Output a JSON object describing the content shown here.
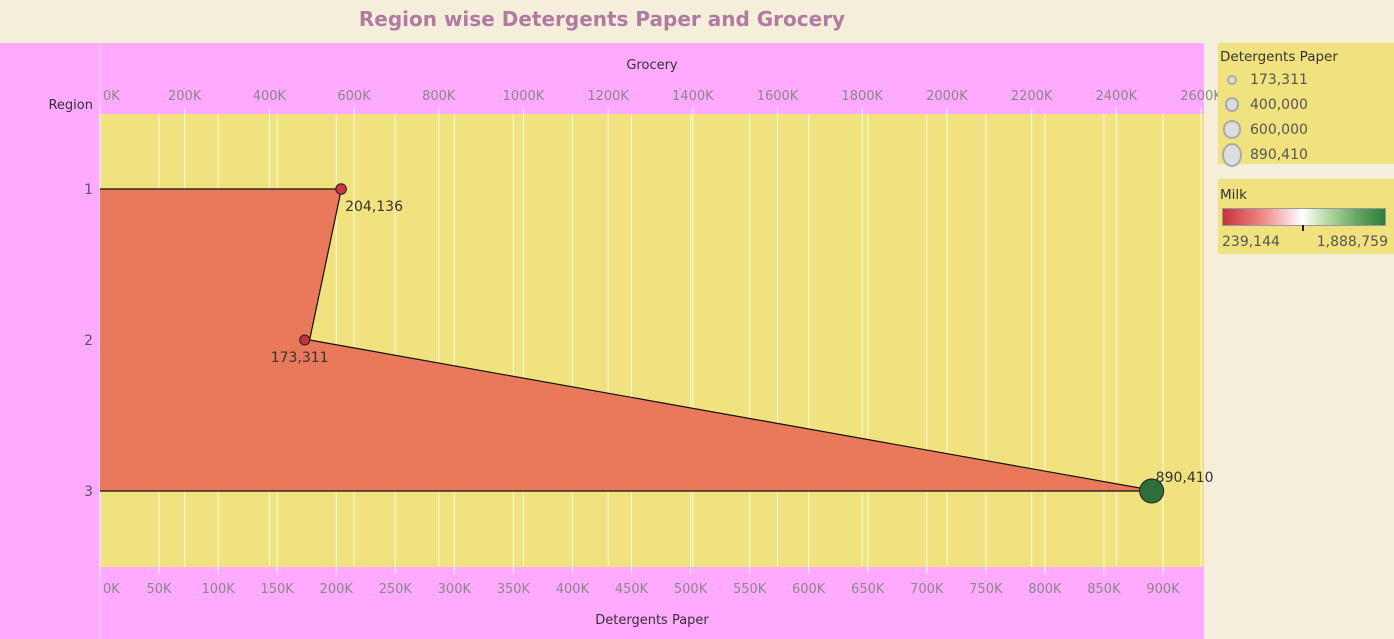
{
  "chart_data": {
    "type": "area",
    "title": "Region wise Detergents Paper and Grocery",
    "row_axis_title": "Region",
    "top_axis": {
      "title": "Grocery",
      "min": 0,
      "max": 2600000,
      "ticks": [
        {
          "value": 0,
          "label": "0K"
        },
        {
          "value": 200000,
          "label": "200K"
        },
        {
          "value": 400000,
          "label": "400K"
        },
        {
          "value": 600000,
          "label": "600K"
        },
        {
          "value": 800000,
          "label": "800K"
        },
        {
          "value": 1000000,
          "label": "1000K"
        },
        {
          "value": 1200000,
          "label": "1200K"
        },
        {
          "value": 1400000,
          "label": "1400K"
        },
        {
          "value": 1600000,
          "label": "1600K"
        },
        {
          "value": 1800000,
          "label": "1800K"
        },
        {
          "value": 2000000,
          "label": "2000K"
        },
        {
          "value": 2200000,
          "label": "2200K"
        },
        {
          "value": 2400000,
          "label": "2400K"
        },
        {
          "value": 2600000,
          "label": "2600K"
        }
      ]
    },
    "bottom_axis": {
      "title": "Detergents Paper",
      "min": 0,
      "max": 900000,
      "ticks": [
        {
          "value": 0,
          "label": "0K"
        },
        {
          "value": 50000,
          "label": "50K"
        },
        {
          "value": 100000,
          "label": "100K"
        },
        {
          "value": 150000,
          "label": "150K"
        },
        {
          "value": 200000,
          "label": "200K"
        },
        {
          "value": 250000,
          "label": "250K"
        },
        {
          "value": 300000,
          "label": "300K"
        },
        {
          "value": 350000,
          "label": "350K"
        },
        {
          "value": 400000,
          "label": "400K"
        },
        {
          "value": 450000,
          "label": "450K"
        },
        {
          "value": 500000,
          "label": "500K"
        },
        {
          "value": 550000,
          "label": "550K"
        },
        {
          "value": 600000,
          "label": "600K"
        },
        {
          "value": 650000,
          "label": "650K"
        },
        {
          "value": 700000,
          "label": "700K"
        },
        {
          "value": 750000,
          "label": "750K"
        },
        {
          "value": 800000,
          "label": "800K"
        },
        {
          "value": 850000,
          "label": "850K"
        },
        {
          "value": 900000,
          "label": "900K"
        }
      ]
    },
    "regions": [
      {
        "label": "1",
        "grocery": 570000,
        "detergents_paper": 204136,
        "detergents_paper_label": "204,136",
        "milk": 420000
      },
      {
        "label": "2",
        "grocery": 495000,
        "detergents_paper": 173311,
        "detergents_paper_label": "173,311",
        "milk": 239144
      },
      {
        "label": "3",
        "grocery": 2495000,
        "detergents_paper": 890410,
        "detergents_paper_label": "890,410",
        "milk": 1888759
      }
    ],
    "area_color": "#e8795a",
    "plot_background": "#f0e27f",
    "axis_background": "#ffaaff",
    "grid": true,
    "legend_position": "right"
  },
  "size_legend": {
    "title": "Detergents Paper",
    "items": [
      {
        "label": "173,311",
        "value": 173311
      },
      {
        "label": "400,000",
        "value": 400000
      },
      {
        "label": "600,000",
        "value": 600000
      },
      {
        "label": "890,410",
        "value": 890410
      }
    ]
  },
  "color_legend": {
    "title": "Milk",
    "min_label": "239,144",
    "max_label": "1,888,759",
    "min": 239144,
    "max": 1888759,
    "mid": 1063951,
    "colors": {
      "low": "#c8323c",
      "mid": "#ffffff",
      "high": "#2f6e3a"
    }
  }
}
